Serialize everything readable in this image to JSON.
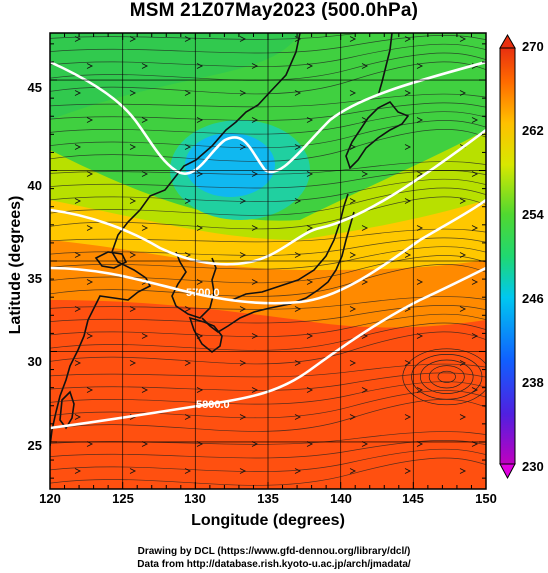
{
  "title": "MSM 21Z07May2023 (500.0hPa)",
  "axes": {
    "xlabel": "Longitude (degrees)",
    "ylabel": "Latitude  (degrees)",
    "xticks": [
      "120",
      "125",
      "130",
      "135",
      "140",
      "145",
      "150"
    ],
    "yticks": [
      "45",
      "40",
      "35",
      "30",
      "25"
    ],
    "xlim": [
      120,
      150
    ],
    "ylim": [
      22.4,
      47.6
    ]
  },
  "colorbar": {
    "ticks": [
      "270",
      "262",
      "254",
      "246",
      "238",
      "230"
    ],
    "range": [
      230,
      270
    ],
    "colors": [
      "#c000c0",
      "#3030ff",
      "#00b4ff",
      "#00e0a0",
      "#30d050",
      "#a8e000",
      "#ffe000",
      "#ff9a00",
      "#ff4a00",
      "#e83010"
    ]
  },
  "contours": {
    "color": "#ffffff",
    "labels": [
      "5700.0",
      "5800.0"
    ]
  },
  "credits": {
    "line1": "Drawing by DCL (https://www.gfd-dennou.org/library/dcl/)",
    "line2": "Data from http://database.rish.kyoto-u.ac.jp/arch/jmadata/"
  }
}
